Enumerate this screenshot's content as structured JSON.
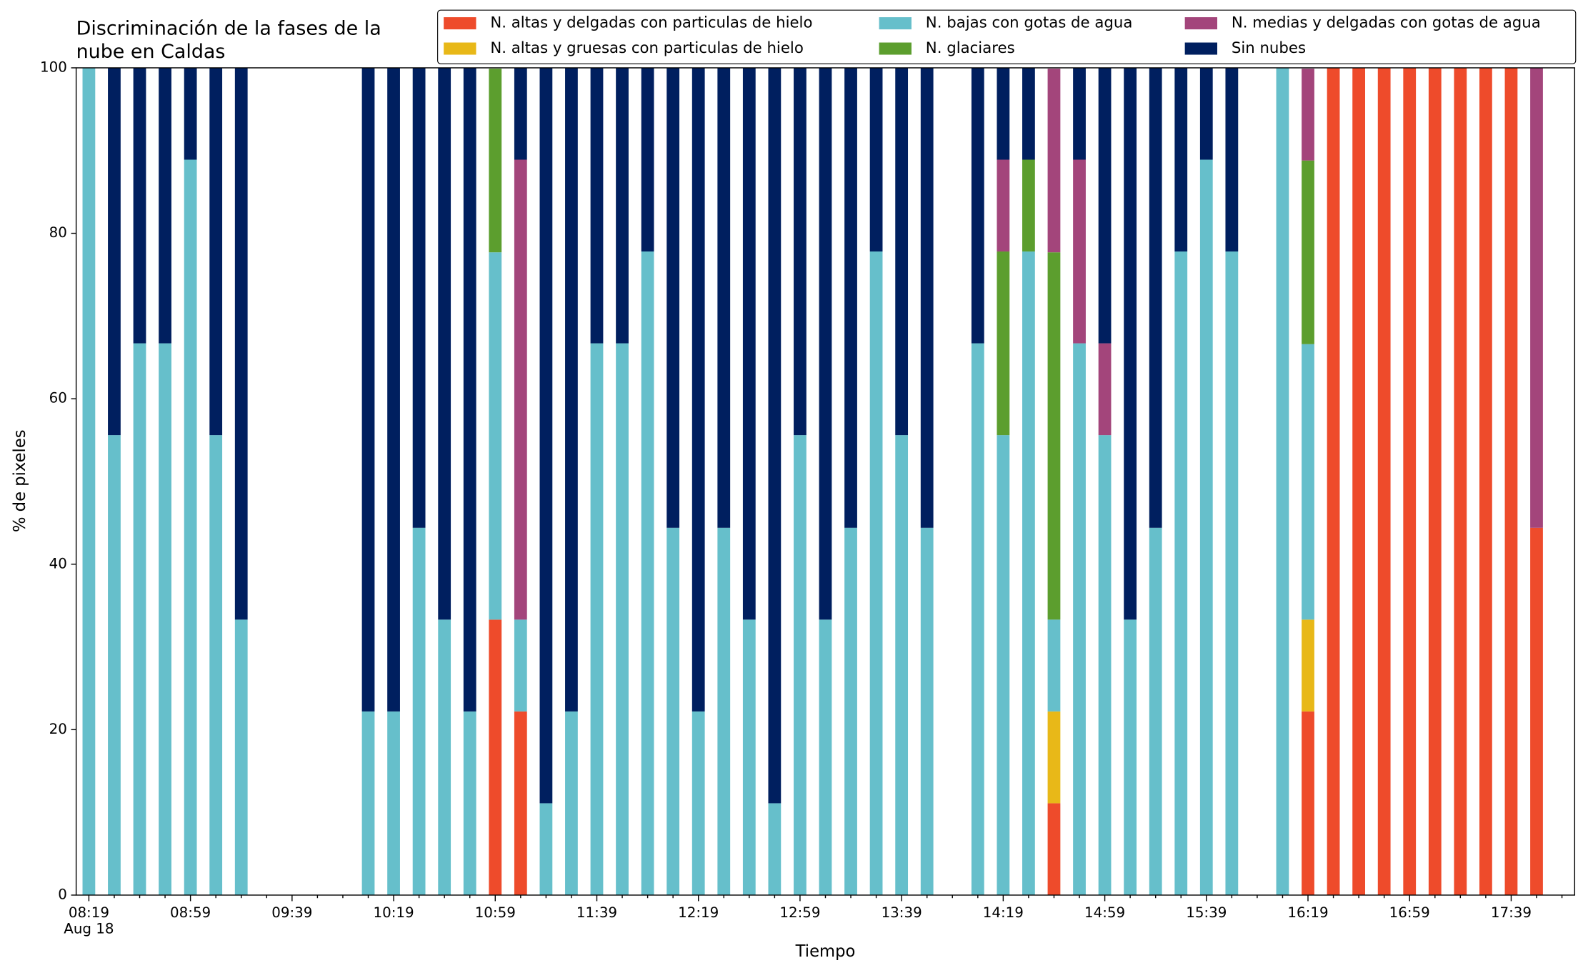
{
  "chart_data": {
    "type": "stacked_bar",
    "title_lines": [
      "Discriminación de la fases de la",
      "nube en Caldas"
    ],
    "xlabel": "Tiempo",
    "ylabel": "% de pixeles",
    "date_label": "Aug 18",
    "categories": [
      "08:19",
      null,
      null,
      null,
      "08:59",
      null,
      null,
      null,
      "09:39",
      null,
      null,
      null,
      "10:19",
      null,
      null,
      null,
      "10:59",
      null,
      null,
      null,
      "11:39",
      null,
      null,
      null,
      "12:19",
      null,
      null,
      null,
      "12:59",
      null,
      null,
      null,
      "13:39",
      null,
      null,
      null,
      "14:19",
      null,
      null,
      null,
      "14:59",
      null,
      null,
      null,
      "15:39",
      null,
      null,
      null,
      "16:19",
      null,
      null,
      null,
      "16:59",
      null,
      null,
      null,
      "17:39",
      null,
      null
    ],
    "ylim": [
      0,
      100
    ],
    "yticks": [
      0,
      20,
      40,
      60,
      80,
      100
    ],
    "legend_columns": 3,
    "legend": "upper right",
    "series": [
      {
        "name": "N. altas y delgadas con particulas de hielo",
        "color": "#ee4b2b",
        "values": [
          0,
          0,
          0,
          0,
          0,
          0,
          0,
          0,
          0,
          0,
          0,
          0,
          0,
          0,
          0,
          0,
          33.3,
          22.2,
          0,
          0,
          0,
          0,
          0,
          0,
          0,
          0,
          0,
          0,
          0,
          0,
          0,
          0,
          0,
          0,
          0,
          0,
          0,
          0,
          11.1,
          0,
          0,
          0,
          0,
          0,
          0,
          0,
          0,
          0,
          22.2,
          100,
          100,
          100,
          100,
          100,
          100,
          100,
          100,
          44.4,
          0
        ]
      },
      {
        "name": "N. altas y gruesas con particulas de hielo",
        "color": "#e8b818",
        "values": [
          0,
          0,
          0,
          0,
          0,
          0,
          0,
          0,
          0,
          0,
          0,
          0,
          0,
          0,
          0,
          0,
          0,
          0,
          0,
          0,
          0,
          0,
          0,
          0,
          0,
          0,
          0,
          0,
          0,
          0,
          0,
          0,
          0,
          0,
          0,
          0,
          0,
          0,
          11.1,
          0,
          0,
          0,
          0,
          0,
          0,
          0,
          0,
          0,
          11.1,
          0,
          0,
          0,
          0,
          0,
          0,
          0,
          0,
          0,
          0
        ]
      },
      {
        "name": "N. bajas con gotas de agua",
        "color": "#66bfcb",
        "values": [
          100,
          55.6,
          66.7,
          66.7,
          88.9,
          55.6,
          33.3,
          0,
          0,
          0,
          0,
          22.2,
          22.2,
          44.4,
          33.3,
          22.2,
          44.4,
          11.1,
          11.1,
          22.2,
          66.7,
          66.7,
          77.8,
          44.4,
          22.2,
          44.4,
          33.3,
          11.1,
          55.6,
          33.3,
          44.4,
          77.8,
          55.6,
          44.4,
          0,
          66.7,
          55.6,
          77.8,
          11.1,
          66.7,
          55.6,
          33.3,
          44.4,
          77.8,
          88.9,
          77.8,
          0,
          100,
          33.3,
          0,
          0,
          0,
          0,
          0,
          0,
          0,
          0,
          0,
          0
        ]
      },
      {
        "name": "N. glaciares",
        "color": "#5c9e2e",
        "values": [
          0,
          0,
          0,
          0,
          0,
          0,
          0,
          0,
          0,
          0,
          0,
          0,
          0,
          0,
          0,
          0,
          22.2,
          0,
          0,
          0,
          0,
          0,
          0,
          0,
          0,
          0,
          0,
          0,
          0,
          0,
          0,
          0,
          0,
          0,
          0,
          0,
          22.2,
          11.1,
          44.4,
          0,
          0,
          0,
          0,
          0,
          0,
          0,
          0,
          0,
          22.2,
          0,
          0,
          0,
          0,
          0,
          0,
          0,
          0,
          0,
          0
        ]
      },
      {
        "name": "N. medias y delgadas con gotas de agua",
        "color": "#a3457b",
        "values": [
          0,
          0,
          0,
          0,
          0,
          0,
          0,
          0,
          0,
          0,
          0,
          0,
          0,
          0,
          0,
          0,
          0,
          55.6,
          0,
          0,
          0,
          0,
          0,
          0,
          0,
          0,
          0,
          0,
          0,
          0,
          0,
          0,
          0,
          0,
          0,
          0,
          11.1,
          0,
          22.2,
          22.2,
          11.1,
          0,
          0,
          0,
          0,
          0,
          0,
          0,
          11.1,
          0,
          0,
          0,
          0,
          0,
          0,
          0,
          0,
          55.6,
          0
        ]
      },
      {
        "name": "Sin nubes",
        "color": "#001f5f",
        "values": [
          0,
          44.4,
          33.3,
          33.3,
          11.1,
          44.4,
          66.7,
          0,
          0,
          0,
          0,
          77.8,
          77.8,
          55.6,
          66.7,
          77.8,
          0,
          11.1,
          88.9,
          77.8,
          33.3,
          33.3,
          22.2,
          55.6,
          77.8,
          55.6,
          66.7,
          88.9,
          44.4,
          66.7,
          55.6,
          22.2,
          44.4,
          55.6,
          0,
          33.3,
          11.1,
          11.1,
          0,
          11.1,
          33.3,
          66.7,
          55.6,
          22.2,
          11.1,
          22.2,
          0,
          0,
          0,
          0,
          0,
          0,
          0,
          0,
          0,
          0,
          0,
          0,
          0
        ]
      }
    ]
  }
}
